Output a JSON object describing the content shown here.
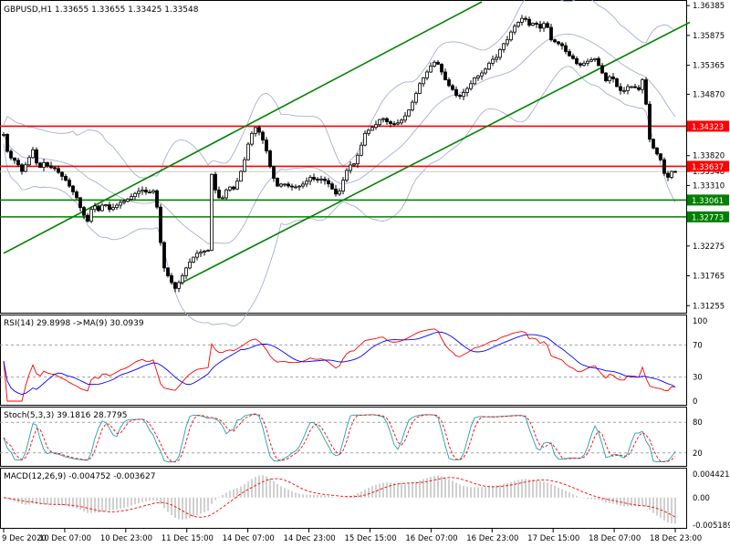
{
  "chart_data": {
    "type": "candlestick",
    "symbol_header": "GBPUSD,H1  1.33655 1.33655 1.33425 1.33548",
    "price_axis": [
      "1.36385",
      "1.35875",
      "1.35365",
      "1.34870",
      "1.34323",
      "1.33820",
      "1.33637",
      "1.33548",
      "1.33310",
      "1.33061",
      "1.32773",
      "1.32275",
      "1.31765",
      "1.31255"
    ],
    "price_range": [
      1.3115,
      1.3645
    ],
    "levels": [
      {
        "value": 1.34323,
        "label": "1.34323",
        "color": "#ff0000"
      },
      {
        "value": 1.33637,
        "label": "1.33637",
        "color": "#ff0000"
      },
      {
        "value": 1.33061,
        "label": "1.33061",
        "color": "#008000"
      },
      {
        "value": 1.32773,
        "label": "1.32773",
        "color": "#008000"
      }
    ],
    "current_price": {
      "value": 1.33548,
      "label": "1.33548"
    },
    "time_axis": [
      "9 Dec 2020",
      "10 Dec 07:00",
      "10 Dec 23:00",
      "11 Dec 15:00",
      "14 Dec 07:00",
      "14 Dec 23:00",
      "15 Dec 15:00",
      "16 Dec 07:00",
      "16 Dec 23:00",
      "17 Dec 15:00",
      "18 Dec 07:00",
      "18 Dec 23:00"
    ],
    "close_path": [
      [
        0,
        1.3465
      ],
      [
        6,
        1.3395
      ],
      [
        12,
        1.3378
      ],
      [
        18,
        1.3372
      ],
      [
        24,
        1.3355
      ],
      [
        30,
        1.3372
      ],
      [
        36,
        1.3392
      ],
      [
        42,
        1.3358
      ],
      [
        48,
        1.337
      ],
      [
        54,
        1.3362
      ],
      [
        60,
        1.336
      ],
      [
        66,
        1.335
      ],
      [
        72,
        1.334
      ],
      [
        78,
        1.3325
      ],
      [
        84,
        1.331
      ],
      [
        90,
        1.3285
      ],
      [
        96,
        1.327
      ],
      [
        102,
        1.33
      ],
      [
        108,
        1.3288
      ],
      [
        114,
        1.3302
      ],
      [
        120,
        1.329
      ],
      [
        126,
        1.3295
      ],
      [
        132,
        1.3302
      ],
      [
        138,
        1.3305
      ],
      [
        144,
        1.3312
      ],
      [
        150,
        1.332
      ],
      [
        156,
        1.3323
      ],
      [
        162,
        1.3318
      ],
      [
        168,
        1.3322
      ],
      [
        174,
        1.328
      ],
      [
        177,
        1.321
      ],
      [
        180,
        1.319
      ],
      [
        186,
        1.317
      ],
      [
        192,
        1.3155
      ],
      [
        198,
        1.317
      ],
      [
        204,
        1.319
      ],
      [
        210,
        1.3205
      ],
      [
        216,
        1.3215
      ],
      [
        222,
        1.3218
      ],
      [
        228,
        1.322
      ],
      [
        232,
        1.335
      ],
      [
        238,
        1.331
      ],
      [
        244,
        1.331
      ],
      [
        250,
        1.333
      ],
      [
        256,
        1.3325
      ],
      [
        262,
        1.3345
      ],
      [
        268,
        1.3375
      ],
      [
        274,
        1.3415
      ],
      [
        280,
        1.343
      ],
      [
        286,
        1.3418
      ],
      [
        292,
        1.339
      ],
      [
        298,
        1.335
      ],
      [
        304,
        1.333
      ],
      [
        310,
        1.3335
      ],
      [
        316,
        1.333
      ],
      [
        322,
        1.3328
      ],
      [
        328,
        1.333
      ],
      [
        334,
        1.3335
      ],
      [
        340,
        1.3345
      ],
      [
        346,
        1.334
      ],
      [
        352,
        1.3342
      ],
      [
        358,
        1.3338
      ],
      [
        364,
        1.3325
      ],
      [
        370,
        1.3312
      ],
      [
        376,
        1.334
      ],
      [
        382,
        1.3365
      ],
      [
        388,
        1.3368
      ],
      [
        394,
        1.339
      ],
      [
        400,
        1.342
      ],
      [
        406,
        1.3428
      ],
      [
        412,
        1.3435
      ],
      [
        418,
        1.3448
      ],
      [
        424,
        1.344
      ],
      [
        430,
        1.3435
      ],
      [
        436,
        1.3438
      ],
      [
        442,
        1.3445
      ],
      [
        448,
        1.346
      ],
      [
        454,
        1.348
      ],
      [
        460,
        1.3505
      ],
      [
        466,
        1.352
      ],
      [
        472,
        1.3535
      ],
      [
        478,
        1.3545
      ],
      [
        484,
        1.3525
      ],
      [
        490,
        1.3505
      ],
      [
        496,
        1.3495
      ],
      [
        502,
        1.348
      ],
      [
        508,
        1.349
      ],
      [
        514,
        1.35
      ],
      [
        520,
        1.3515
      ],
      [
        526,
        1.352
      ],
      [
        532,
        1.353
      ],
      [
        538,
        1.3545
      ],
      [
        544,
        1.355
      ],
      [
        550,
        1.357
      ],
      [
        556,
        1.358
      ],
      [
        562,
        1.36
      ],
      [
        568,
        1.361
      ],
      [
        574,
        1.362
      ],
      [
        580,
        1.3605
      ],
      [
        586,
        1.361
      ],
      [
        592,
        1.36
      ],
      [
        598,
        1.3612
      ],
      [
        604,
        1.358
      ],
      [
        610,
        1.3575
      ],
      [
        616,
        1.357
      ],
      [
        622,
        1.3555
      ],
      [
        628,
        1.3548
      ],
      [
        634,
        1.3535
      ],
      [
        640,
        1.354
      ],
      [
        646,
        1.3545
      ],
      [
        652,
        1.3548
      ],
      [
        658,
        1.353
      ],
      [
        664,
        1.351
      ],
      [
        670,
        1.352
      ],
      [
        676,
        1.35
      ],
      [
        682,
        1.349
      ],
      [
        688,
        1.35
      ],
      [
        694,
        1.35
      ],
      [
        700,
        1.3495
      ],
      [
        706,
        1.352
      ],
      [
        710,
        1.342
      ],
      [
        714,
        1.34
      ],
      [
        718,
        1.339
      ],
      [
        724,
        1.3375
      ],
      [
        730,
        1.334
      ],
      [
        736,
        1.3355
      ],
      [
        742,
        1.3354
      ]
    ],
    "channel": {
      "color": "#008000",
      "upper": [
        [
          4,
          1.3215
        ],
        [
          528,
          1.3645
        ]
      ],
      "lower": [
        [
          196,
          1.3162
        ],
        [
          756,
          1.361
        ]
      ]
    },
    "rsi": {
      "title": "RSI(14) 29.8998   ->MA(9) 30.0939",
      "levels": [
        "100",
        "70",
        "30",
        "0"
      ],
      "range": [
        0,
        100
      ]
    },
    "stoch": {
      "title": "Stoch(5,3,3) 39.1816 28.7795",
      "levels": [
        "80",
        "20"
      ],
      "range": [
        0,
        100
      ]
    },
    "macd": {
      "title": "MACD(12,26,9) -0.004752 -0.003627",
      "levels": [
        "0.004421",
        "0.00",
        "-0.005189"
      ],
      "range": [
        -0.00519,
        0.00442
      ]
    }
  }
}
